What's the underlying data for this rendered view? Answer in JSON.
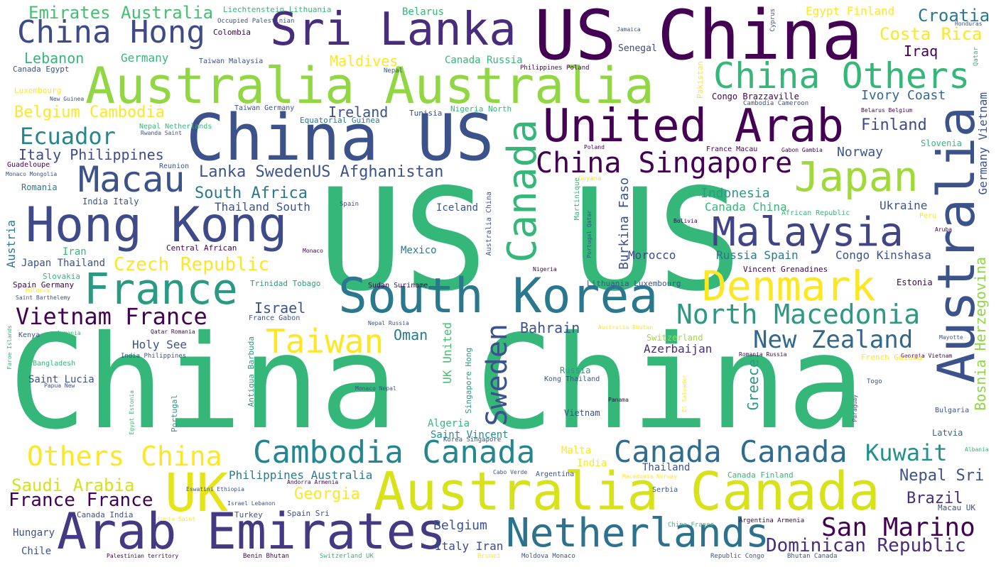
{
  "palette": {
    "dark_purple": "#440154",
    "indigo": "#3b528b",
    "teal": "#21908d",
    "green": "#35b779",
    "lime": "#90d743",
    "yellow": "#fde725"
  },
  "words": [
    "China China",
    "US US",
    "China US",
    "US China",
    "Australia Australia",
    "Australia Canada",
    "Sri Lanka",
    "Arab Emirates",
    "South Korea",
    "Hong Kong",
    "United Arab",
    "Australia",
    "Netherlands",
    "Canada",
    "Denmark",
    "China Others",
    "Japan",
    "Malaysia",
    "France",
    "UK",
    "Cambodia Canada",
    "Canada Canada",
    "Macau",
    "China Hong",
    "China Singapore",
    "North Macedonia",
    "Taiwan",
    "Sweden",
    "Others China",
    "New Zealand",
    "San Marino",
    "Vietnam France",
    "Kuwait",
    "Dominican Republic",
    "Ecuador",
    "Emirates Australia",
    "Croatia",
    "Costa Rica",
    "Czech Republic",
    "Belgium Cambodia",
    "France France",
    "Saudi Arabia",
    "Lanka SwedenUS Afghanistan",
    "Bosnia Herzegovina",
    "Italy Philippines",
    "South Africa",
    "Georgia",
    "Brazil",
    "Nepal Sri",
    "Egypt Finland",
    "Ireland",
    "Finland",
    "Iraq",
    "Ivory Coast",
    "Israel",
    "Bahrain",
    "Philippines Australia",
    "Indonesia",
    "Canada China",
    "Thailand South",
    "Maldives",
    "Lebanon",
    "Germany",
    "Norway",
    "Oman",
    "Belgium",
    "Italy Iran",
    "Greece",
    "Germany Vietnam",
    "UK United",
    "Holy See",
    "Azerbaijan",
    "Burkina Faso",
    "Ukraine",
    "Russia Spain",
    "Congo Kinshasa",
    "Morocco",
    "Austria",
    "Canada Russia",
    "Belarus",
    "Thailand",
    "Mexico",
    "Malta",
    "India",
    "Iran",
    "Japan Thailand",
    "Iceland",
    "Algeria",
    "Saint Vincent",
    "Saint Lucia",
    "Hungary",
    "Chile",
    "Romania",
    "Slovenia",
    "Latvia",
    "Estonia",
    "Switzerland",
    "Russia",
    "Vietnam",
    "Kenya",
    "Bangladesh",
    "Spain Germany",
    "Slovakia",
    "Senegal",
    "Canada Egypt",
    "Colombia",
    "Luxembourg",
    "Congo Brazzaville",
    "Nigeria North",
    "Tunisia",
    "Equatorial Guinea",
    "Taiwan Germany",
    "Taiwan Malaysia",
    "Liechtenstein Lithuania",
    "Occupied Palestinian",
    "Lithuania Luxembourg",
    "Vincent Grenadines",
    "Central African",
    "Trinidad Tobago",
    "Sudan Suriname",
    "France Gabon",
    "Canada Finland",
    "Canada India",
    "Turkey",
    "Spain Sri",
    "Georgia Vietnam",
    "Singapore Hong",
    "Portugal",
    "Antigua Barbuda",
    "Kong Thailand",
    "Bulgaria",
    "Argentina",
    "Serbia",
    "Korea Singapore",
    "Cambodia Cameroon",
    "France Macau",
    "Gabon Gambia",
    "African Republic",
    "Peru",
    "Pakistan",
    "Australia China",
    "Guyana",
    "Martinique",
    "Nepal Netherlands",
    "India Italy",
    "Reunion",
    "Guadeloupe",
    "Monaco Mongolia",
    "Rwanda Saint",
    "New Guinea",
    "Nepal",
    "Jamaica",
    "Honduras",
    "Cyprus",
    "Qatar",
    "Philippines Poland",
    "Belarus Belgium",
    "Poland",
    "Spain",
    "Nigeria",
    "Bolivia",
    "Aruba",
    "Monaco",
    "Moldova",
    "Saint Barthelemy",
    "Faroe Islands",
    "Armenia",
    "Qatar Romania",
    "India Philippines",
    "Egypt Estonia",
    "Papua New",
    "Monaco Nepal",
    "Nepal Russia",
    "Australia Bhutan",
    "Romania Russia",
    "Mayotte",
    "Togo",
    "French Guiana",
    "Panama",
    "El Salvador",
    "Paraguay",
    "Albania",
    "Cabo Verde",
    "Macedonia Norway",
    "Eswatini Ethiopia",
    "Andorra Armenia",
    "Israel Lebanon",
    "Lucia Saint",
    "China France",
    "Argentina Armenia",
    "Macau UK",
    "Palestinian territory",
    "Benin Bhutan",
    "Switzerland UK",
    "Brunei",
    "Moldova Monaco",
    "Republic Congo",
    "Bhutan Canada",
    "Portugal Qatar"
  ]
}
